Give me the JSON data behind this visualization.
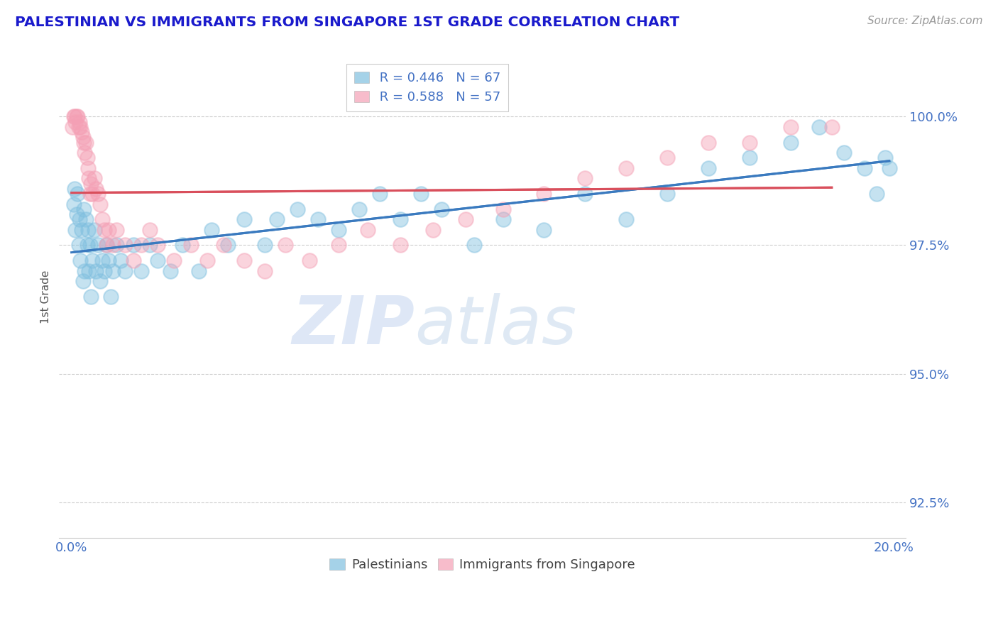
{
  "title": "PALESTINIAN VS IMMIGRANTS FROM SINGAPORE 1ST GRADE CORRELATION CHART",
  "source": "Source: ZipAtlas.com",
  "ylabel": "1st Grade",
  "xlabel": "",
  "xlim": [
    -0.3,
    20.3
  ],
  "ylim": [
    91.8,
    101.2
  ],
  "yticks": [
    92.5,
    95.0,
    97.5,
    100.0
  ],
  "ytick_labels": [
    "92.5%",
    "95.0%",
    "97.5%",
    "100.0%"
  ],
  "xticks": [
    0.0,
    2.5,
    5.0,
    7.5,
    10.0,
    12.5,
    15.0,
    17.5,
    20.0
  ],
  "xtick_labels": [
    "0.0%",
    "",
    "",
    "",
    "",
    "",
    "",
    "",
    "20.0%"
  ],
  "blue_R": 0.446,
  "blue_N": 67,
  "pink_R": 0.588,
  "pink_N": 57,
  "blue_color": "#7fbfdf",
  "pink_color": "#f4a0b5",
  "blue_line_color": "#3a7abf",
  "pink_line_color": "#d94f5c",
  "legend_label_blue": "Palestinians",
  "legend_label_pink": "Immigrants from Singapore",
  "watermark_zip": "ZIP",
  "watermark_atlas": "atlas",
  "blue_x": [
    0.05,
    0.08,
    0.1,
    0.12,
    0.15,
    0.18,
    0.2,
    0.22,
    0.25,
    0.28,
    0.3,
    0.32,
    0.35,
    0.38,
    0.4,
    0.42,
    0.45,
    0.48,
    0.5,
    0.55,
    0.6,
    0.65,
    0.7,
    0.75,
    0.8,
    0.85,
    0.9,
    0.95,
    1.0,
    1.1,
    1.2,
    1.3,
    1.5,
    1.7,
    1.9,
    2.1,
    2.4,
    2.7,
    3.1,
    3.4,
    3.8,
    4.2,
    4.7,
    5.0,
    5.5,
    6.0,
    6.5,
    7.0,
    7.5,
    8.0,
    8.5,
    9.0,
    9.8,
    10.5,
    11.5,
    12.5,
    13.5,
    14.5,
    15.5,
    16.5,
    17.5,
    18.2,
    18.8,
    19.3,
    19.6,
    19.8,
    19.9
  ],
  "blue_y": [
    98.3,
    98.6,
    97.8,
    98.1,
    98.5,
    97.5,
    98.0,
    97.2,
    97.8,
    96.8,
    98.2,
    97.0,
    98.0,
    97.5,
    97.8,
    97.0,
    97.5,
    96.5,
    97.2,
    97.8,
    97.0,
    97.5,
    96.8,
    97.2,
    97.0,
    97.5,
    97.2,
    96.5,
    97.0,
    97.5,
    97.2,
    97.0,
    97.5,
    97.0,
    97.5,
    97.2,
    97.0,
    97.5,
    97.0,
    97.8,
    97.5,
    98.0,
    97.5,
    98.0,
    98.2,
    98.0,
    97.8,
    98.2,
    98.5,
    98.0,
    98.5,
    98.2,
    97.5,
    98.0,
    97.8,
    98.5,
    98.0,
    98.5,
    99.0,
    99.2,
    99.5,
    99.8,
    99.3,
    99.0,
    98.5,
    99.2,
    99.0
  ],
  "pink_x": [
    0.03,
    0.05,
    0.07,
    0.1,
    0.12,
    0.15,
    0.18,
    0.2,
    0.22,
    0.25,
    0.28,
    0.3,
    0.32,
    0.35,
    0.38,
    0.4,
    0.42,
    0.45,
    0.48,
    0.5,
    0.55,
    0.6,
    0.65,
    0.7,
    0.75,
    0.8,
    0.85,
    0.9,
    1.0,
    1.1,
    1.3,
    1.5,
    1.7,
    1.9,
    2.1,
    2.5,
    2.9,
    3.3,
    3.7,
    4.2,
    4.7,
    5.2,
    5.8,
    6.5,
    7.2,
    8.0,
    8.8,
    9.6,
    10.5,
    11.5,
    12.5,
    13.5,
    14.5,
    15.5,
    16.5,
    17.5,
    18.5
  ],
  "pink_y": [
    99.8,
    100.0,
    100.0,
    99.9,
    100.0,
    100.0,
    99.8,
    99.9,
    99.8,
    99.7,
    99.6,
    99.5,
    99.3,
    99.5,
    99.2,
    99.0,
    98.8,
    98.5,
    98.7,
    98.5,
    98.8,
    98.6,
    98.5,
    98.3,
    98.0,
    97.8,
    97.5,
    97.8,
    97.5,
    97.8,
    97.5,
    97.2,
    97.5,
    97.8,
    97.5,
    97.2,
    97.5,
    97.2,
    97.5,
    97.2,
    97.0,
    97.5,
    97.2,
    97.5,
    97.8,
    97.5,
    97.8,
    98.0,
    98.2,
    98.5,
    98.8,
    99.0,
    99.2,
    99.5,
    99.5,
    99.8,
    99.8
  ]
}
